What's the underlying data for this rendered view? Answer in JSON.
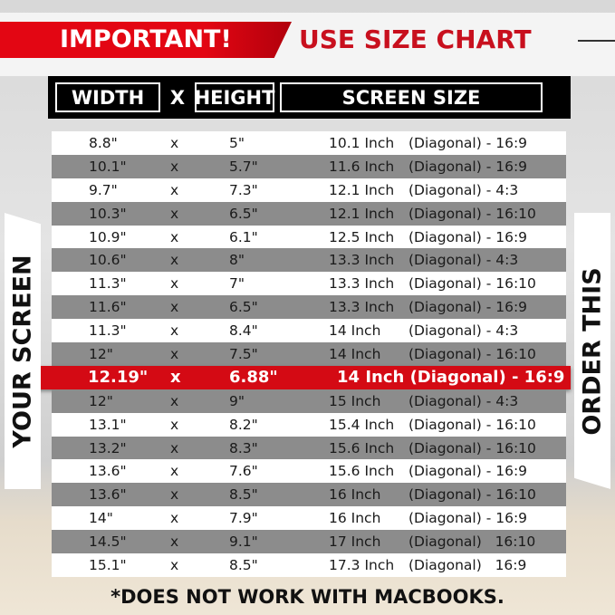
{
  "banner": {
    "important": "IMPORTANT!",
    "use_size_chart": "USE SIZE CHART"
  },
  "header": {
    "width": "WIDTH",
    "x": "X",
    "height": "HEIGHT",
    "screen_size": "SCREEN SIZE"
  },
  "side": {
    "left": "YOUR SCREEN",
    "right": "ORDER THIS"
  },
  "colors": {
    "accent_red": "#d40a14",
    "stripe_gray": "#8c8c8c"
  },
  "highlight_index": 10,
  "rows": [
    {
      "w": "8.8\"",
      "x": "x",
      "h": "5\"",
      "size": "10.1 Inch",
      "diag": "(Diagonal) - 16:9"
    },
    {
      "w": "10.1\"",
      "x": "x",
      "h": "5.7\"",
      "size": "11.6 Inch",
      "diag": "(Diagonal) - 16:9"
    },
    {
      "w": "9.7\"",
      "x": "x",
      "h": "7.3\"",
      "size": "12.1 Inch",
      "diag": "(Diagonal) - 4:3"
    },
    {
      "w": "10.3\"",
      "x": "x",
      "h": "6.5\"",
      "size": "12.1 Inch",
      "diag": "(Diagonal) - 16:10"
    },
    {
      "w": "10.9\"",
      "x": "x",
      "h": "6.1\"",
      "size": "12.5 Inch",
      "diag": "(Diagonal) - 16:9"
    },
    {
      "w": "10.6\"",
      "x": "x",
      "h": "8\"",
      "size": "13.3 Inch",
      "diag": "(Diagonal) - 4:3"
    },
    {
      "w": "11.3\"",
      "x": "x",
      "h": "7\"",
      "size": "13.3 Inch",
      "diag": "(Diagonal) - 16:10"
    },
    {
      "w": "11.6\"",
      "x": "x",
      "h": "6.5\"",
      "size": "13.3 Inch",
      "diag": "(Diagonal) - 16:9"
    },
    {
      "w": "11.3\"",
      "x": "x",
      "h": "8.4\"",
      "size": "14 Inch",
      "diag": "(Diagonal) - 4:3"
    },
    {
      "w": "12\"",
      "x": "x",
      "h": "7.5\"",
      "size": "14 Inch",
      "diag": "(Diagonal) - 16:10"
    },
    {
      "w": "12.19\"",
      "x": "x",
      "h": "6.88\"",
      "size": "14 Inch (Diagonal) - 16:9",
      "diag": ""
    },
    {
      "w": "12\"",
      "x": "x",
      "h": "9\"",
      "size": "15 Inch",
      "diag": "(Diagonal) - 4:3"
    },
    {
      "w": "13.1\"",
      "x": "x",
      "h": "8.2\"",
      "size": "15.4 Inch",
      "diag": "(Diagonal) - 16:10"
    },
    {
      "w": "13.2\"",
      "x": "x",
      "h": "8.3\"",
      "size": "15.6 Inch",
      "diag": "(Diagonal) - 16:10"
    },
    {
      "w": "13.6\"",
      "x": "x",
      "h": "7.6\"",
      "size": "15.6 Inch",
      "diag": "(Diagonal) - 16:9"
    },
    {
      "w": "13.6\"",
      "x": "x",
      "h": "8.5\"",
      "size": "16 Inch",
      "diag": "(Diagonal) - 16:10"
    },
    {
      "w": "14\"",
      "x": "x",
      "h": "7.9\"",
      "size": "16 Inch",
      "diag": "(Diagonal) - 16:9"
    },
    {
      "w": "14.5\"",
      "x": "x",
      "h": "9.1\"",
      "size": "17 Inch",
      "diag": "(Diagonal)   16:10"
    },
    {
      "w": "15.1\"",
      "x": "x",
      "h": "8.5\"",
      "size": "17.3 Inch",
      "diag": "(Diagonal)   16:9"
    }
  ],
  "footer": "*DOES NOT WORK WITH MACBOOKS."
}
